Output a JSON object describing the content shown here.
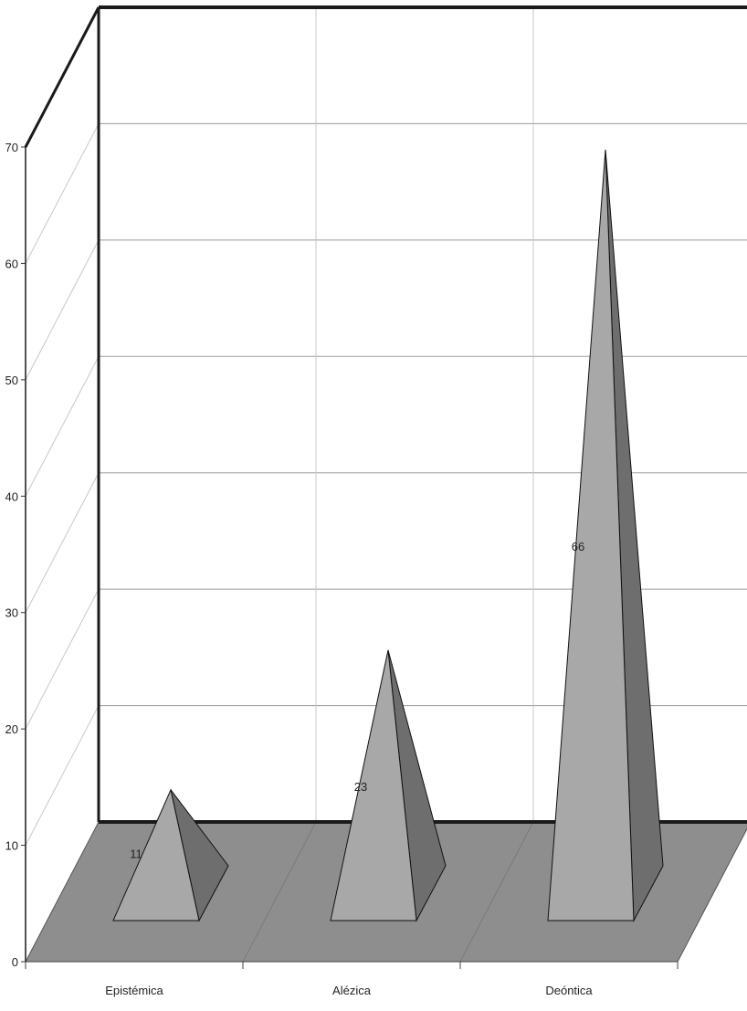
{
  "chart_data": {
    "type": "bar",
    "style": "3d-pyramid",
    "categories": [
      "Epistémica",
      "Alézica",
      "Deóntica"
    ],
    "series": [
      {
        "values": [
          11,
          23,
          66
        ]
      }
    ],
    "data_labels": [
      "11",
      "23",
      "66"
    ],
    "ylim": [
      0,
      70
    ],
    "yticks": [
      "0",
      "10",
      "20",
      "30",
      "40",
      "50",
      "60",
      "70"
    ],
    "grid": true,
    "legend": "none",
    "colors": {
      "front": "#a8a8a8",
      "side": "#6e6e6e",
      "floor": "#8e8e8e",
      "gridline": "#9a9a9a",
      "frame": "#1a1a1a"
    }
  }
}
